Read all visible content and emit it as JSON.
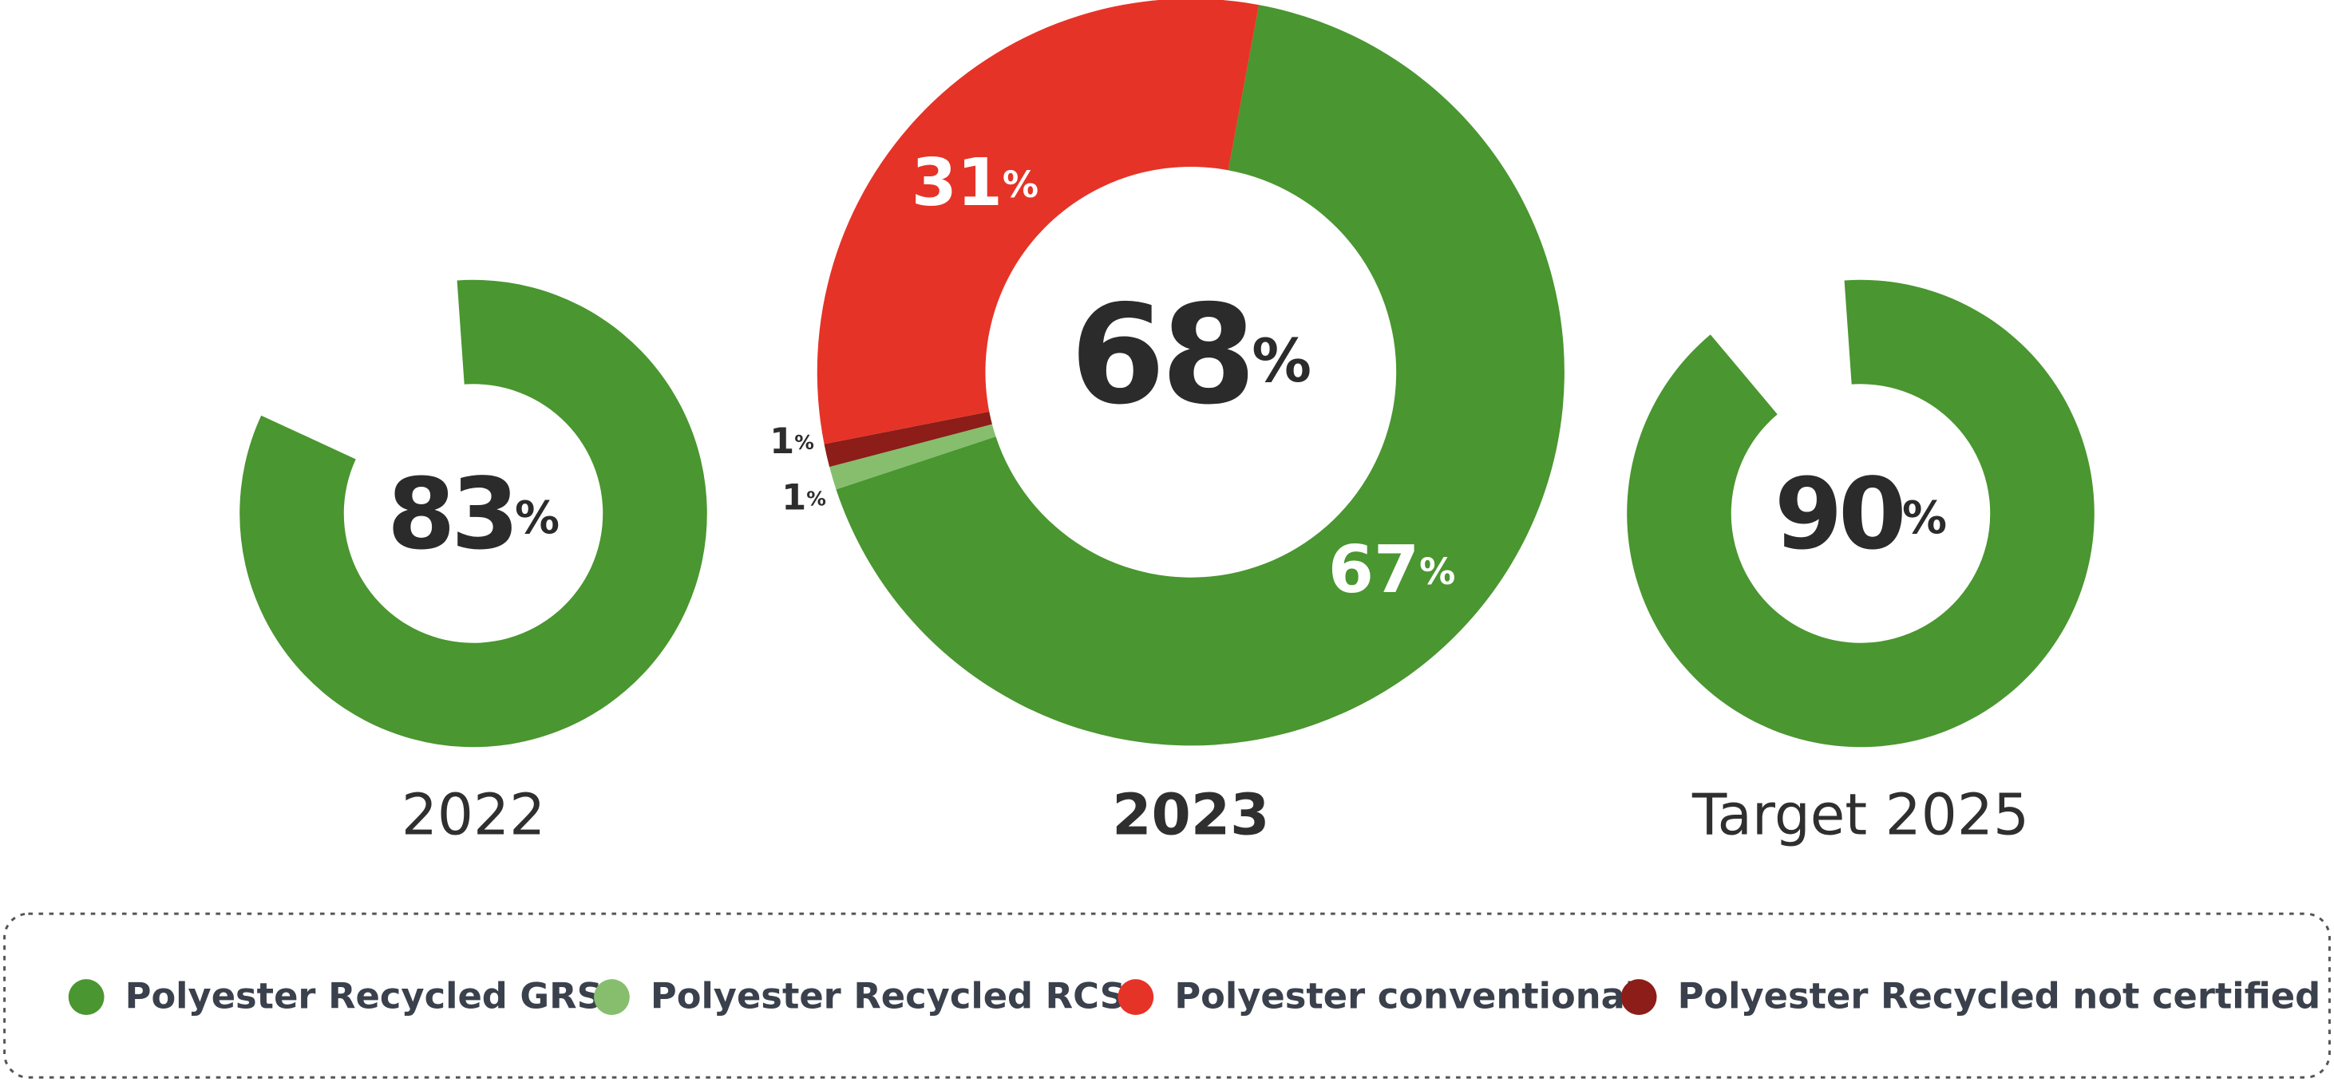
{
  "chart_data": [
    {
      "type": "donut",
      "title": "2022",
      "center_value": 83,
      "unit": "%",
      "ylim": [
        0,
        100
      ],
      "segments": [
        {
          "color": "#4a9630",
          "value": 83
        }
      ]
    },
    {
      "type": "donut",
      "title": "2023",
      "center_value": 68,
      "unit": "%",
      "ylim": [
        0,
        100
      ],
      "segments": [
        {
          "color": "#4a9630",
          "value": 67
        },
        {
          "color": "#86be6e",
          "value": 1
        },
        {
          "color": "#8c1d18",
          "value": 1
        },
        {
          "color": "#e63327",
          "value": 31
        }
      ]
    },
    {
      "type": "donut",
      "title": "Target 2025",
      "center_value": 90,
      "unit": "%",
      "ylim": [
        0,
        100
      ],
      "segments": [
        {
          "color": "#4a9630",
          "value": 90
        }
      ]
    }
  ],
  "legend": [
    {
      "name": "Polyester Recycled GRS",
      "color": "#4a9630"
    },
    {
      "name": "Polyester Recycled RCS",
      "color": "#86be6e"
    },
    {
      "name": "Polyester conventional",
      "color": "#e63327"
    },
    {
      "name": "Polyester Recycled not certified",
      "color": "#8c1d18"
    }
  ]
}
